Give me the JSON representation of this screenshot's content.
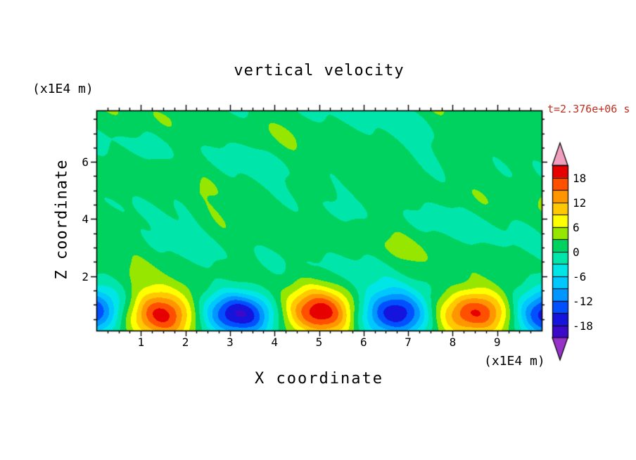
{
  "title": "vertical velocity",
  "time_label": "t=2.376e+06 s",
  "axes": {
    "xlabel": "X coordinate",
    "ylabel": "Z coordinate",
    "x_units": "(x1E4 m)",
    "y_units": "(x1E4 m)",
    "x_ticks": [
      1,
      2,
      3,
      4,
      5,
      6,
      7,
      8,
      9
    ],
    "z_ticks": [
      2,
      4,
      6
    ]
  },
  "colors": {
    "time_label": "#c03020",
    "frame": "#000000",
    "text": "#000000",
    "background": "#ffffff"
  },
  "chart_data": {
    "type": "heatmap",
    "title": "vertical velocity",
    "xlabel": "X coordinate",
    "ylabel": "Z coordinate",
    "units": "(x1E4 m)",
    "time": "t=2.376e+06 s",
    "x_range": [
      0,
      10
    ],
    "z_range": [
      0.1,
      7.8
    ],
    "x_major_tick_step": 1,
    "x_minor_tick_step": 0.25,
    "z_major_tick_step": 2,
    "z_minor_tick_step": 0.5,
    "levels": [
      -21,
      -18,
      -15,
      -12,
      -9,
      -6,
      -3,
      0,
      3,
      6,
      9,
      12,
      15,
      18,
      21
    ],
    "band_colors": [
      "#3a0ac8",
      "#1414dc",
      "#0050ff",
      "#0096ff",
      "#00c8ff",
      "#00e6e6",
      "#00e6aa",
      "#00d25f",
      "#96e600",
      "#ffff00",
      "#ffc800",
      "#ff9600",
      "#ff5000",
      "#e60000"
    ],
    "under_color": "#9632c8",
    "over_color": "#f0a0be",
    "colorbar_labels": [
      18,
      12,
      6,
      0,
      -6,
      -12,
      -18
    ],
    "legend_position": "right",
    "grid": false,
    "description": "Vertical velocity field: near-zero (green) interior with a wave train of alternating cells below z=2; warm updraft cores (orange/red, w up to ~+20) near x=1.5, 5.0, 8.5 and cold downdraft cores (blue, w down to ~-20) near x=0, 3.2, 6.8, 10.",
    "field_model": {
      "wave": {
        "wavelength": 3.5,
        "warm_center_x": 1.47,
        "amplitude": 17.5,
        "z_peak": 0.7,
        "z_width": 0.8
      },
      "noise_terms": [
        {
          "a": 1.0,
          "kx": 0.9,
          "kz": 2.3,
          "p": 1.2
        },
        {
          "a": 0.8,
          "kx": 1.8,
          "kz": 1.05,
          "p": 4.4
        },
        {
          "a": 0.6,
          "kx": 3.2,
          "kz": 0.65,
          "p": 2.7
        },
        {
          "a": 0.5,
          "kx": 0.5,
          "kz": 3.4,
          "p": 0.6
        },
        {
          "a": 0.45,
          "kx": 5.1,
          "kz": 1.8,
          "p": 5.3
        },
        {
          "a": 0.35,
          "kx": 7.9,
          "kz": 4.6,
          "p": 0.2
        }
      ],
      "noise_bias": 0.9,
      "clamp": 20.8
    }
  }
}
